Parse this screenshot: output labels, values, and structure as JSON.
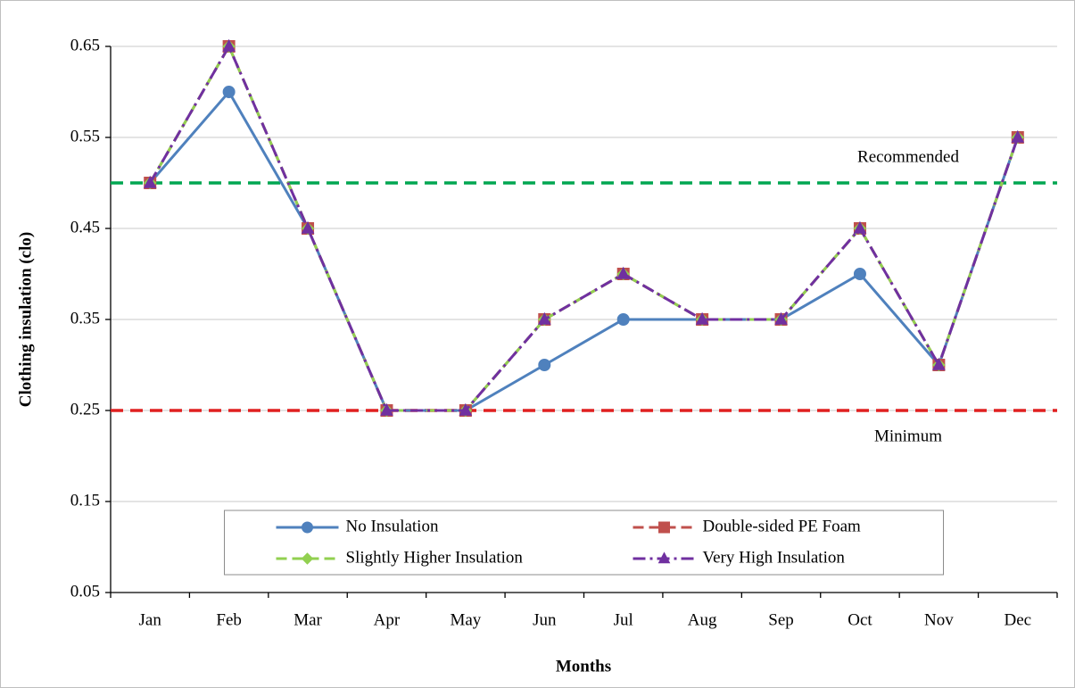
{
  "chart_data": {
    "type": "line",
    "x_label": "Months",
    "y_label": "Clothing insulation (clo)",
    "categories": [
      "Jan",
      "Feb",
      "Mar",
      "Apr",
      "May",
      "Jun",
      "Jul",
      "Aug",
      "Sep",
      "Oct",
      "Nov",
      "Dec"
    ],
    "series": [
      {
        "name": "No Insulation",
        "color": "#4f81bd",
        "dash": "solid",
        "marker": "circle",
        "values": [
          0.5,
          0.6,
          0.45,
          0.25,
          0.25,
          0.3,
          0.35,
          0.35,
          0.35,
          0.4,
          0.3,
          0.55
        ]
      },
      {
        "name": "Double-sided PE Foam",
        "color": "#c0504d",
        "dash": "dash",
        "marker": "square",
        "values": [
          0.5,
          0.65,
          0.45,
          0.25,
          0.25,
          0.35,
          0.4,
          0.35,
          0.35,
          0.45,
          0.3,
          0.55
        ]
      },
      {
        "name": "Slightly Higher Insulation",
        "color": "#92d050",
        "dash": "dash",
        "marker": "diamond",
        "values": [
          0.5,
          0.65,
          0.45,
          0.25,
          0.25,
          0.35,
          0.4,
          0.35,
          0.35,
          0.45,
          0.3,
          0.55
        ]
      },
      {
        "name": "Very High Insulation",
        "color": "#7030a0",
        "dash": "dashdot",
        "marker": "triangle",
        "values": [
          0.5,
          0.65,
          0.45,
          0.25,
          0.25,
          0.35,
          0.4,
          0.35,
          0.35,
          0.45,
          0.3,
          0.55
        ]
      }
    ],
    "reference_lines": [
      {
        "label": "Recommended",
        "value": 0.5,
        "color": "#00a651"
      },
      {
        "label": "Minimum",
        "value": 0.25,
        "color": "#e02020"
      }
    ],
    "ylim": [
      0.05,
      0.65
    ],
    "yticks": [
      0.05,
      0.15,
      0.25,
      0.35,
      0.45,
      0.55,
      0.65
    ],
    "grid": true,
    "legend": "lower center"
  }
}
